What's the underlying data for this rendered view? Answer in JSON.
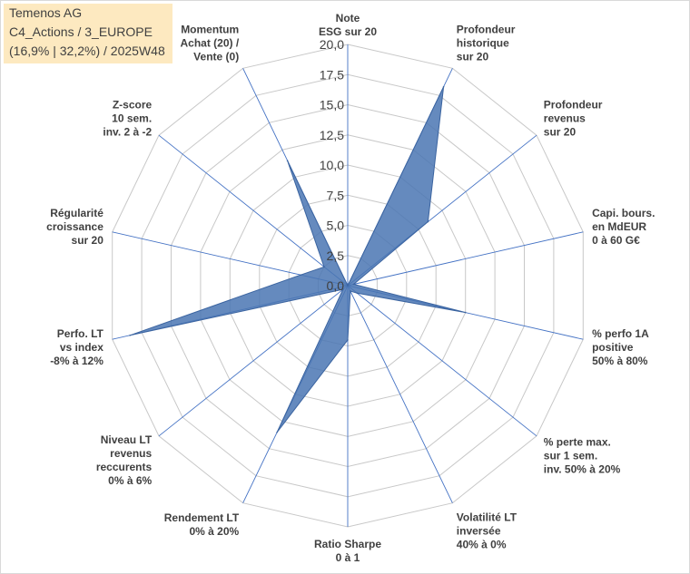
{
  "header": {
    "line1": "Temenos AG",
    "line2": "C4_Actions / 3_EUROPE",
    "line3": "(16,9% | 32,2%) / 2025W48"
  },
  "chart_data": {
    "type": "radar",
    "title": "Temenos AG — C4_Actions / 3_EUROPE (16,9% | 32,2%) / 2025W48",
    "rmin": 0,
    "rmax": 20,
    "tick_values": [
      0,
      2.5,
      5,
      7.5,
      10,
      12.5,
      15,
      17.5,
      20
    ],
    "tick_labels": [
      "0,0",
      "2,5",
      "5,0",
      "7,5",
      "10,0",
      "12,5",
      "15,0",
      "17,5",
      "20,0"
    ],
    "grid_color": "#c8c8c8",
    "spoke_color": "#4472c4",
    "fill_color": "#4a76b3",
    "axes": [
      {
        "lines": [
          "Note",
          "ESG sur 20"
        ],
        "value": 0
      },
      {
        "lines": [
          "Profondeur",
          "historique",
          "sur 20"
        ],
        "value": 18.3
      },
      {
        "lines": [
          "Profondeur",
          "revenus",
          "sur 20"
        ],
        "value": 8.5
      },
      {
        "lines": [
          "Capi. bours.",
          "en MdEUR",
          "0 à 60 G€"
        ],
        "value": 0.5
      },
      {
        "lines": [
          "% perfo 1A",
          "positive",
          "50% à 80%"
        ],
        "value": 10.0
      },
      {
        "lines": [
          "% perte max.",
          "sur 1 sem.",
          "inv. 50% à 20%"
        ],
        "value": 1.0
      },
      {
        "lines": [
          "Volatilité LT",
          "inversée",
          "40% à 0%"
        ],
        "value": 0.5
      },
      {
        "lines": [
          "Ratio Sharpe",
          "0 à 1"
        ],
        "value": 4.5
      },
      {
        "lines": [
          "Rendement LT",
          "0% à 20%"
        ],
        "value": 13.5
      },
      {
        "lines": [
          "Niveau LT",
          "revenus",
          "reccurents",
          "0% à 6%"
        ],
        "value": 0.5
      },
      {
        "lines": [
          "Perfo. LT",
          "vs index",
          "-8% à 12%"
        ],
        "value": 18.5
      },
      {
        "lines": [
          "Régularité",
          "croissance",
          "sur 20"
        ],
        "value": 4.0
      },
      {
        "lines": [
          "Z-score",
          "10 sem.",
          "inv. 2 à -2"
        ],
        "value": 2.5
      },
      {
        "lines": [
          "Momentum",
          "Achat (20) /",
          "Vente (0)"
        ],
        "value": 11.5
      }
    ]
  }
}
